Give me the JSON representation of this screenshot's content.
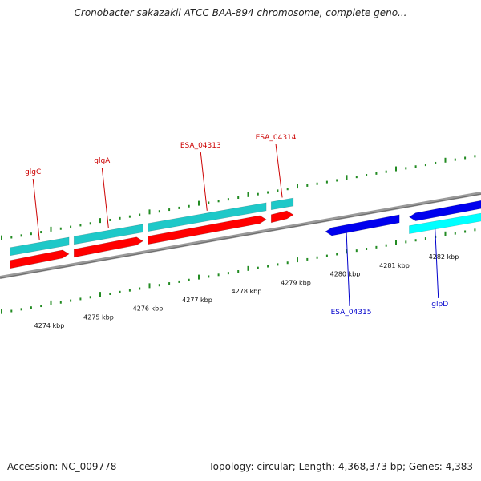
{
  "title": "Cronobacter sakazakii ATCC BAA-894 chromosome, complete geno...",
  "footer": {
    "accession": "Accession: NC_009778",
    "info": "Topology: circular; Length: 4,368,373 bp; Genes: 4,383"
  },
  "colors": {
    "forward_cds": "#ff0000",
    "forward_gene": "#1ec8c8",
    "reverse_cds": "#0000ee",
    "reverse_gene": "#00ffff",
    "backbone": "#808080",
    "ticks": "#228b22",
    "forward_label": "#cc0000",
    "reverse_label": "#0000cc"
  },
  "scale_labels": [
    "4274 kbp",
    "4275 kbp",
    "4276 kbp",
    "4277 kbp",
    "4278 kbp",
    "4279 kbp",
    "4280 kbp",
    "4281 kbp",
    "4282 kbp"
  ],
  "forward_features": [
    {
      "name": "glgC",
      "start": 4273.2,
      "end": 4274.4
    },
    {
      "name": "glgA",
      "start": 4274.5,
      "end": 4275.9
    },
    {
      "name": "ESA_04313",
      "start": 4276.0,
      "end": 4278.4
    },
    {
      "name": "ESA_04314",
      "start": 4278.5,
      "end": 4278.95
    }
  ],
  "reverse_features": [
    {
      "name": "ESA_04315",
      "start": 4279.6,
      "end": 4281.1
    },
    {
      "name": "glpD",
      "start": 4281.3,
      "end": 4283.0
    }
  ]
}
